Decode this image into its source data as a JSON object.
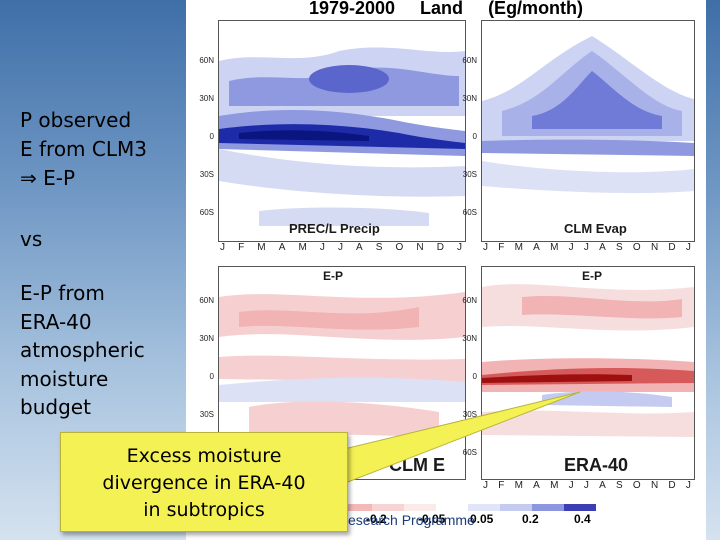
{
  "figure": {
    "period": "1979-2000",
    "domain": "Land",
    "units": "(Eg/month)"
  },
  "left_text": {
    "line1": "P observed",
    "line2": "E from CLM3",
    "line3": "⇒  E-P",
    "vs": "vs",
    "line4": "E-P from",
    "line5": "ERA-40",
    "line6": "atmospheric",
    "line7": "moisture",
    "line8": "budget"
  },
  "panels": {
    "top_left_label": "PREC/L Precip",
    "top_right_label": "CLM Evap",
    "bottom_left_top": "E-P",
    "bottom_right_top": "E-P",
    "bottom_left_label": "CLM E",
    "bottom_right_label": "ERA-40"
  },
  "lat_ticks": [
    "60N",
    "30N",
    "0",
    "30S",
    "60S"
  ],
  "months": [
    "J",
    "F",
    "M",
    "A",
    "M",
    "J",
    "J",
    "A",
    "S",
    "O",
    "N",
    "D",
    "J"
  ],
  "callout": {
    "line1": "Excess moisture",
    "line2": "divergence in ERA-40",
    "line3": "in subtropics"
  },
  "legend": {
    "labels": [
      "-0.2",
      "-0.05",
      "0.05",
      "0.2",
      "0.4"
    ],
    "colors": [
      "#f3b9b9",
      "#f7d3d3",
      "#fbeaea",
      "#ffffff",
      "#e2e5f7",
      "#c5cbf0",
      "#8d97e0",
      "#3c3fb3"
    ]
  },
  "footer": {
    "text": "esearch Programme"
  }
}
